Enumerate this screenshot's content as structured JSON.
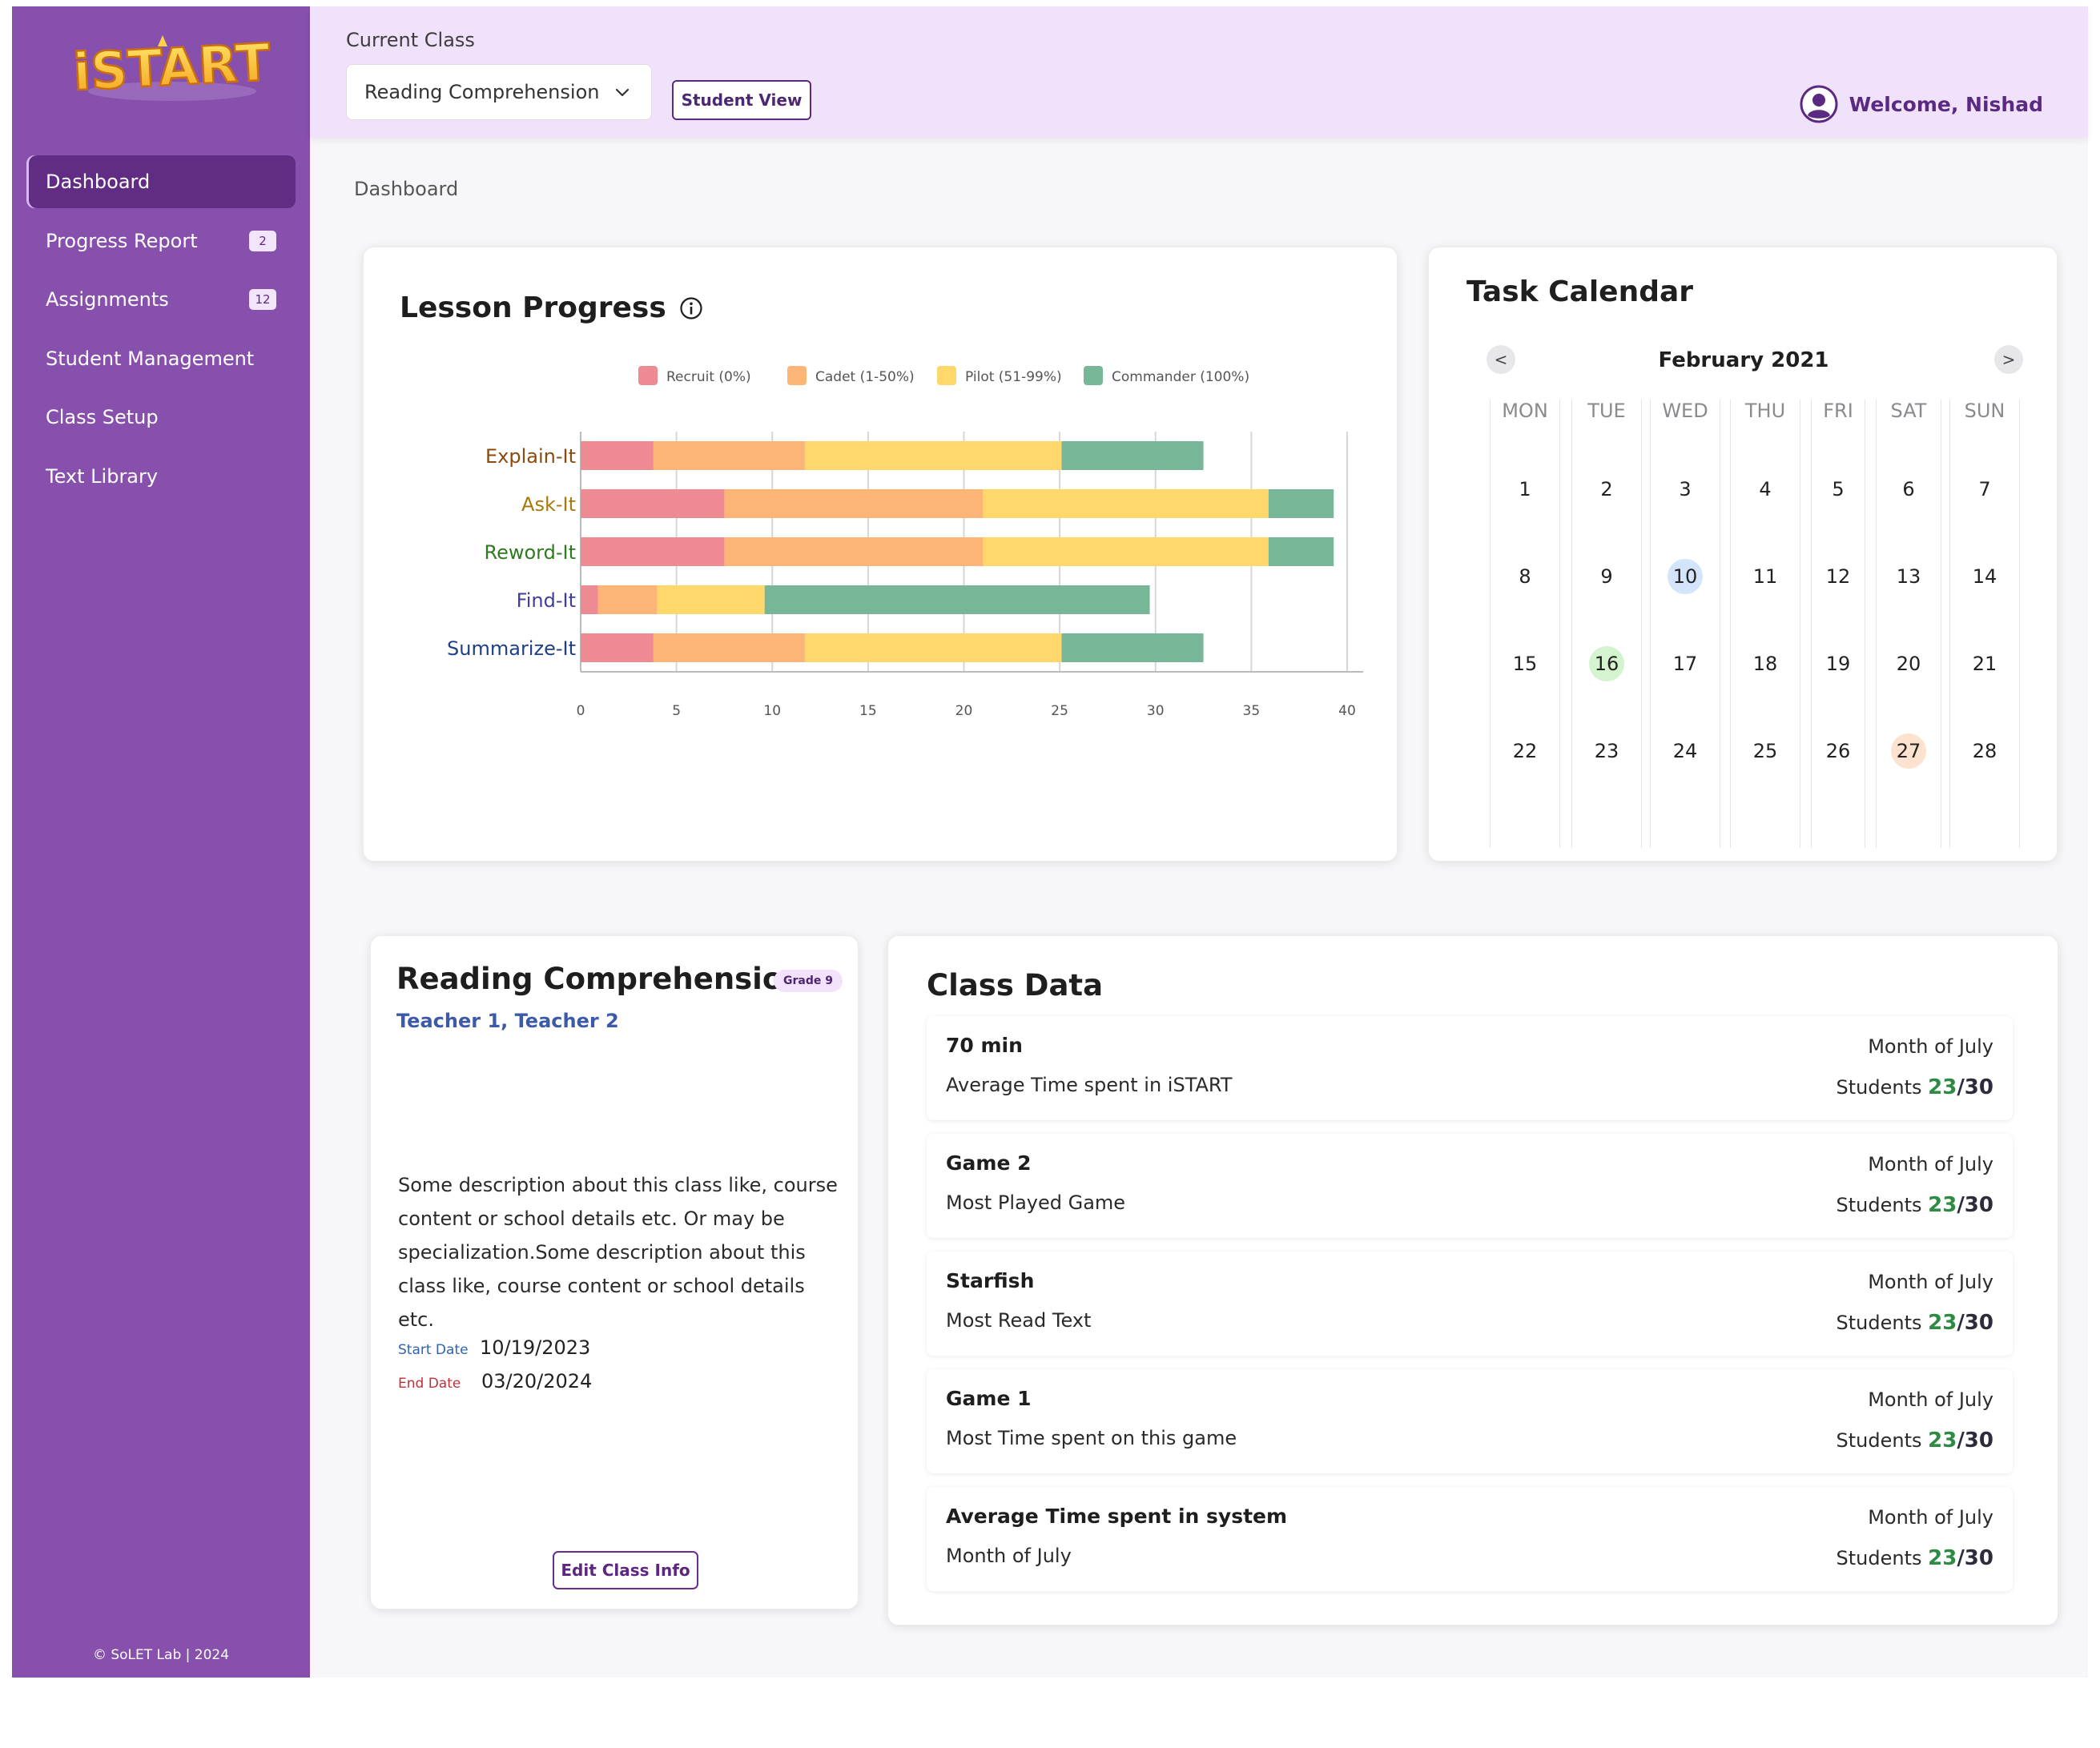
{
  "brand": {
    "logo_text": "iSTART",
    "footer": "© SoLET Lab | 2024"
  },
  "sidebar": {
    "items": [
      {
        "label": "Dashboard",
        "badge": ""
      },
      {
        "label": "Progress Report",
        "badge": "2"
      },
      {
        "label": "Assignments",
        "badge": "12"
      },
      {
        "label": "Student Management",
        "badge": ""
      },
      {
        "label": "Class Setup",
        "badge": ""
      },
      {
        "label": "Text Library",
        "badge": ""
      }
    ]
  },
  "header": {
    "current_class_label": "Current Class",
    "selected_class": "Reading Comprehension",
    "student_view_label": "Student View",
    "welcome": "Welcome, Nishad"
  },
  "breadcrumb": "Dashboard",
  "lesson_progress": {
    "title": "Lesson Progress"
  },
  "chart_data": {
    "type": "bar",
    "orientation": "horizontal",
    "stacked": true,
    "title": "Lesson Progress",
    "categories": [
      "Explain-It",
      "Ask-It",
      "Reword-It",
      "Find-It",
      "Summarize-It"
    ],
    "category_colors": [
      "#8a4b0c",
      "#a8790c",
      "#2f7a1f",
      "#3f3f9a",
      "#1f3f8a"
    ],
    "series": [
      {
        "name": "Recruit (0%)",
        "color": "#ee8a92",
        "values": [
          3.8,
          7.5,
          7.5,
          0.9,
          3.8
        ]
      },
      {
        "name": "Cadet (1-50%)",
        "color": "#fdb577",
        "values": [
          7.9,
          13.5,
          13.5,
          3.1,
          7.9
        ]
      },
      {
        "name": "Pilot (51-99%)",
        "color": "#ffd76a",
        "values": [
          13.4,
          14.9,
          14.9,
          5.6,
          13.4
        ]
      },
      {
        "name": "Commander (100%)",
        "color": "#77b797",
        "values": [
          7.4,
          3.4,
          3.4,
          20.1,
          7.4
        ]
      }
    ],
    "xlim": [
      0,
      40
    ],
    "xticks": [
      0,
      5,
      10,
      15,
      20,
      25,
      30,
      35,
      40
    ],
    "grid": true,
    "legend": "top"
  },
  "calendar": {
    "title": "Task Calendar",
    "month": "February 2021",
    "prev": "<",
    "next": ">",
    "weekdays": [
      "MON",
      "TUE",
      "WED",
      "THU",
      "FRI",
      "SAT",
      "SUN"
    ],
    "weeks": [
      [
        "1",
        "2",
        "3",
        "4",
        "5",
        "6",
        "7"
      ],
      [
        "8",
        "9",
        "10",
        "11",
        "12",
        "13",
        "14"
      ],
      [
        "15",
        "16",
        "17",
        "18",
        "19",
        "20",
        "21"
      ],
      [
        "22",
        "23",
        "24",
        "25",
        "26",
        "27",
        "28"
      ]
    ],
    "highlights": [
      {
        "day": "10",
        "color": "#d3e4fb"
      },
      {
        "day": "16",
        "color": "#d4f3cf"
      },
      {
        "day": "27",
        "color": "#fde3cf"
      }
    ]
  },
  "class_info": {
    "title": "Reading Comprehension",
    "grade": "Grade 9",
    "teachers": "Teacher 1, Teacher 2",
    "description": "Some description about this class like, course content or school details etc. Or may be specialization.Some description about this class like, course content or school details etc.",
    "start_label": "Start Date",
    "start_date": "10/19/2023",
    "end_label": "End Date",
    "end_date": "03/20/2024",
    "edit_label": "Edit Class Info"
  },
  "class_data": {
    "title": "Class Data",
    "rows": [
      {
        "main": "70 min",
        "sub": "Average Time spent in iSTART",
        "period": "Month of July",
        "students_label": "Students",
        "count": "23",
        "total": "/30"
      },
      {
        "main": "Game 2",
        "sub": "Most Played Game",
        "period": "Month of July",
        "students_label": "Students",
        "count": "23",
        "total": "/30"
      },
      {
        "main": "Starfish",
        "sub": "Most Read Text",
        "period": "Month of July",
        "students_label": "Students",
        "count": "23",
        "total": "/30"
      },
      {
        "main": "Game 1",
        "sub": "Most Time spent on this game",
        "period": "Month of July",
        "students_label": "Students",
        "count": "23",
        "total": "/30"
      },
      {
        "main": "Average Time spent in system",
        "sub": "Month of July",
        "period": "Month of July",
        "students_label": "Students",
        "count": "23",
        "total": "/30"
      }
    ]
  }
}
